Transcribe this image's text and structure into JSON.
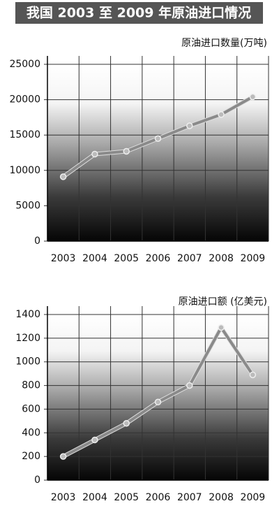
{
  "title": "我国 2003 至 2009 年原油进口情况",
  "chart_data": [
    {
      "type": "line",
      "ylabel": "原油进口数量(万吨)",
      "categories": [
        "2003",
        "2004",
        "2005",
        "2006",
        "2007",
        "2008",
        "2009"
      ],
      "values": [
        9100,
        12300,
        12700,
        14500,
        16300,
        17900,
        20400
      ],
      "color": "#8a8a8a",
      "ylim": [
        0,
        25000
      ],
      "yticks": [
        0,
        5000,
        10000,
        15000,
        20000,
        25000
      ],
      "grid": true
    },
    {
      "type": "line",
      "ylabel": "原油进口额 (亿美元)",
      "categories": [
        "2003",
        "2004",
        "2005",
        "2006",
        "2007",
        "2008",
        "2009"
      ],
      "values": [
        200,
        340,
        480,
        660,
        800,
        1290,
        890
      ],
      "color": "#8a8a8a",
      "ylim": [
        0,
        1400
      ],
      "yticks": [
        0,
        200,
        400,
        600,
        800,
        1000,
        1200,
        1400
      ],
      "grid": true
    }
  ]
}
